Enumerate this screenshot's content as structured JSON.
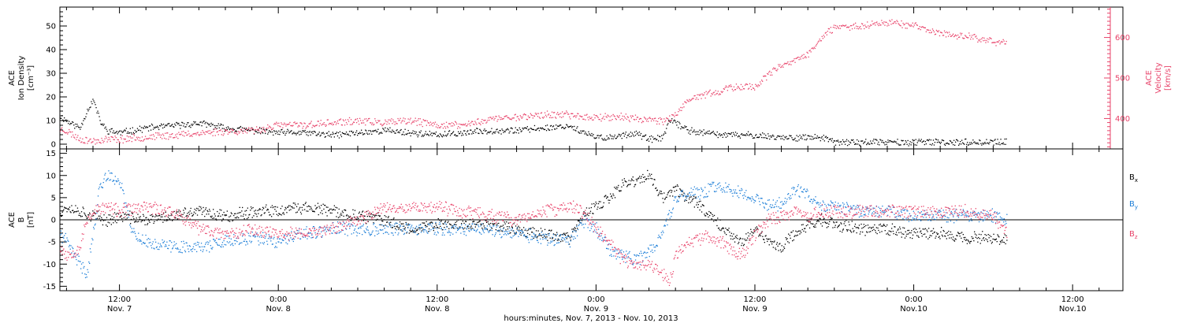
{
  "figure": {
    "xlabel": "hours:minutes, Nov.  7, 2013 - Nov. 10, 2013",
    "ticks": [
      {
        "hour": 12,
        "top": "12:00",
        "bottom": "Nov. 7"
      },
      {
        "hour": 24,
        "top": "0:00",
        "bottom": "Nov. 8"
      },
      {
        "hour": 36,
        "top": "12:00",
        "bottom": "Nov. 8"
      },
      {
        "hour": 48,
        "top": "0:00",
        "bottom": "Nov. 9"
      },
      {
        "hour": 60,
        "top": "12:00",
        "bottom": "Nov. 9"
      },
      {
        "hour": 72,
        "top": "0:00",
        "bottom": "Nov.10"
      },
      {
        "hour": 84,
        "top": "12:00",
        "bottom": "Nov.10"
      }
    ]
  },
  "chart_data": [
    {
      "type": "scatter",
      "title": "",
      "xlim_hours": [
        7.5,
        87.8
      ],
      "ylabel_left": [
        "ACE",
        "Ion Density",
        "[cm⁻³]"
      ],
      "ylabel_right": [
        "ACE",
        "Velocity",
        "[km/s]"
      ],
      "yticks_left": [
        0,
        10,
        20,
        30,
        40,
        50
      ],
      "yticks_right": [
        400,
        500,
        600
      ],
      "ylim_left": [
        -2,
        58
      ],
      "ylim_right": [
        325,
        675
      ],
      "colors": {
        "density": "#000000",
        "velocity": "#e8436a"
      },
      "series": [
        {
          "name": "Ion Density",
          "axis": "left",
          "hour": [
            7.5,
            8,
            9,
            9.5,
            10,
            10.5,
            11,
            12,
            14,
            16,
            18,
            20,
            22,
            24,
            26,
            28,
            30,
            32,
            34,
            36,
            38,
            40,
            42,
            44,
            46,
            47,
            48,
            49,
            50,
            51,
            52,
            53,
            53.5,
            54,
            55,
            56,
            58,
            60,
            62,
            64,
            65,
            66,
            68,
            70,
            72,
            74,
            76,
            78,
            79
          ],
          "value": [
            12,
            10,
            7,
            14,
            19,
            10,
            6,
            5,
            7,
            8,
            9,
            7,
            6,
            5,
            5,
            4,
            5,
            6,
            5,
            4,
            5,
            6,
            6,
            7,
            8,
            5,
            3,
            3,
            4,
            5,
            2,
            3,
            10,
            9,
            6,
            5,
            4,
            4,
            3,
            3,
            3,
            1,
            1,
            1,
            1,
            1,
            1,
            1,
            1
          ]
        },
        {
          "name": "Velocity",
          "axis": "right",
          "hour": [
            7.5,
            8,
            9,
            10,
            11,
            12,
            14,
            16,
            18,
            20,
            22,
            24,
            26,
            28,
            30,
            32,
            34,
            36,
            38,
            40,
            42,
            44,
            46,
            47,
            48,
            49,
            50,
            51,
            52,
            53,
            54,
            55,
            56,
            57,
            58,
            59,
            60,
            61,
            62,
            63,
            64,
            65,
            66,
            68,
            70,
            72,
            74,
            76,
            78,
            79
          ],
          "value": [
            375,
            370,
            350,
            345,
            350,
            350,
            355,
            360,
            365,
            370,
            370,
            385,
            385,
            390,
            395,
            390,
            395,
            385,
            385,
            400,
            405,
            410,
            410,
            405,
            405,
            405,
            405,
            400,
            400,
            395,
            410,
            445,
            460,
            465,
            475,
            480,
            480,
            510,
            530,
            545,
            560,
            600,
            625,
            630,
            640,
            630,
            610,
            605,
            590,
            590
          ]
        }
      ]
    },
    {
      "type": "scatter",
      "title": "",
      "xlim_hours": [
        7.5,
        87.8
      ],
      "ylabel_left": [
        "ACE",
        "B",
        "[nT]"
      ],
      "yticks_left": [
        -15,
        -10,
        -5,
        0,
        5,
        10,
        15
      ],
      "ylim_left": [
        -16,
        16
      ],
      "zero_line": true,
      "legend": {
        "position": "right",
        "entries": [
          {
            "label": "B",
            "sub": "x",
            "color": "#000000"
          },
          {
            "label": "B",
            "sub": "y",
            "color": "#1e7fd8"
          },
          {
            "label": "B",
            "sub": "z",
            "color": "#e8436a"
          }
        ]
      },
      "series": [
        {
          "name": "Bx",
          "hour": [
            7.5,
            8,
            9,
            10,
            11,
            12,
            14,
            16,
            18,
            20,
            22,
            24,
            26,
            28,
            30,
            32,
            34,
            36,
            38,
            40,
            42,
            44,
            46,
            47,
            48,
            49,
            50,
            51,
            52,
            53,
            54,
            55,
            56,
            57,
            58,
            59,
            60,
            61,
            62,
            63,
            64,
            65,
            66,
            68,
            70,
            72,
            74,
            76,
            78,
            79
          ],
          "value": [
            2,
            3,
            2,
            1,
            0,
            1,
            0,
            1,
            2,
            1,
            2,
            2,
            3,
            2,
            1,
            0,
            -2,
            -1,
            -1,
            -1,
            -2,
            -3,
            -4,
            1,
            3,
            5,
            8,
            9,
            10,
            5,
            7,
            5,
            3,
            0,
            -3,
            -5,
            -2,
            -5,
            -6,
            -3,
            -1,
            0,
            -1,
            -2,
            -2,
            -3,
            -3,
            -4,
            -4,
            -4
          ]
        },
        {
          "name": "By",
          "hour": [
            7.5,
            8,
            9,
            9.5,
            10,
            10.5,
            11,
            12,
            13,
            14,
            16,
            18,
            20,
            22,
            24,
            26,
            28,
            30,
            32,
            34,
            36,
            38,
            40,
            42,
            44,
            46,
            47,
            48,
            49,
            50,
            51,
            52,
            53,
            54,
            55,
            56,
            57,
            58,
            59,
            60,
            61,
            62,
            63,
            64,
            65,
            66,
            68,
            70,
            72,
            74,
            76,
            78,
            79
          ],
          "value": [
            -3,
            -5,
            -10,
            -12,
            -3,
            8,
            10,
            9,
            -3,
            -5,
            -6,
            -6,
            -5,
            -4,
            -5,
            -3,
            -2,
            -2,
            -2,
            -2,
            -2,
            -2,
            -2,
            -3,
            -4,
            -5,
            0,
            -2,
            -7,
            -8,
            -9,
            -7,
            -3,
            5,
            6,
            6,
            8,
            7,
            6,
            5,
            3,
            4,
            7,
            6,
            3,
            3,
            2,
            2,
            1,
            1,
            1,
            1,
            0
          ]
        },
        {
          "name": "Bz",
          "hour": [
            7.5,
            8,
            9,
            9.5,
            10,
            11,
            12,
            14,
            16,
            18,
            20,
            22,
            24,
            26,
            28,
            30,
            32,
            34,
            36,
            38,
            40,
            42,
            44,
            46,
            47,
            48,
            49,
            50,
            51,
            52,
            53,
            53.5,
            54,
            55,
            56,
            57,
            58,
            59,
            60,
            61,
            62,
            63,
            64,
            65,
            66,
            68,
            70,
            72,
            74,
            76,
            78,
            79
          ],
          "value": [
            -6,
            -8,
            -6,
            0,
            2,
            3,
            2,
            3,
            2,
            -2,
            -3,
            -2,
            -3,
            -3,
            -2,
            0,
            3,
            3,
            3,
            2,
            1,
            0,
            2,
            3,
            2,
            -2,
            -5,
            -9,
            -10,
            -10,
            -12,
            -14,
            -8,
            -5,
            -4,
            -4,
            -6,
            -8,
            -3,
            0,
            1,
            2,
            1,
            2,
            2,
            2,
            2,
            2,
            2,
            2,
            1,
            -3
          ]
        }
      ]
    }
  ]
}
